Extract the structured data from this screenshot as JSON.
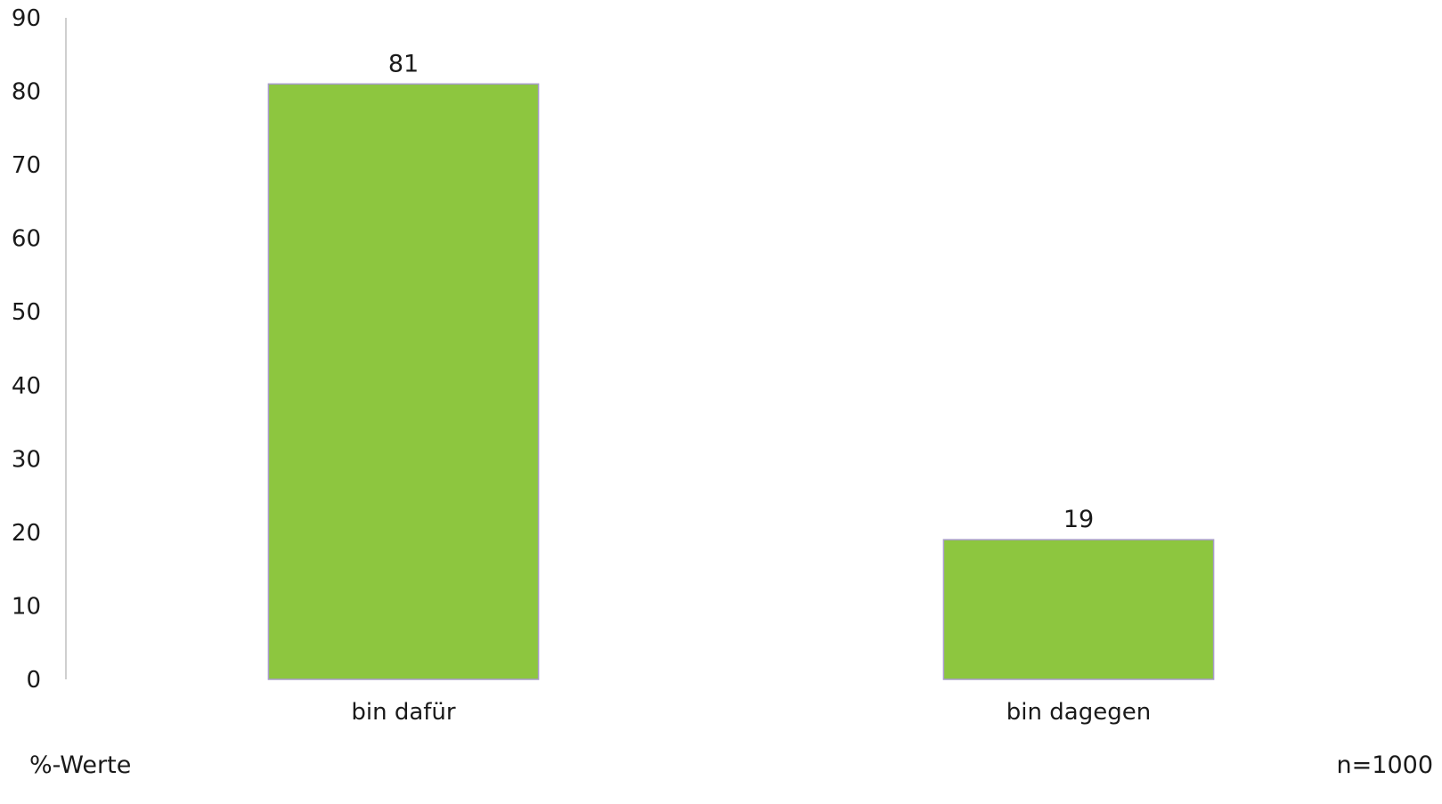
{
  "chart_data": {
    "type": "bar",
    "categories": [
      "bin dafür",
      "bin dagegen"
    ],
    "values": [
      81,
      19
    ],
    "data_labels": [
      "81",
      "19"
    ],
    "ylim": [
      0,
      90
    ],
    "yticks": [
      0,
      10,
      20,
      30,
      40,
      50,
      60,
      70,
      80,
      90
    ],
    "ytick_labels": [
      "0",
      "10",
      "20",
      "30",
      "40",
      "50",
      "60",
      "70",
      "80",
      "90"
    ],
    "grid": false,
    "bar_color": "#8dc63f",
    "bar_edge_color": "#a79cc9"
  },
  "notes": {
    "unit": "%-Werte",
    "sample_size": "n=1000"
  }
}
